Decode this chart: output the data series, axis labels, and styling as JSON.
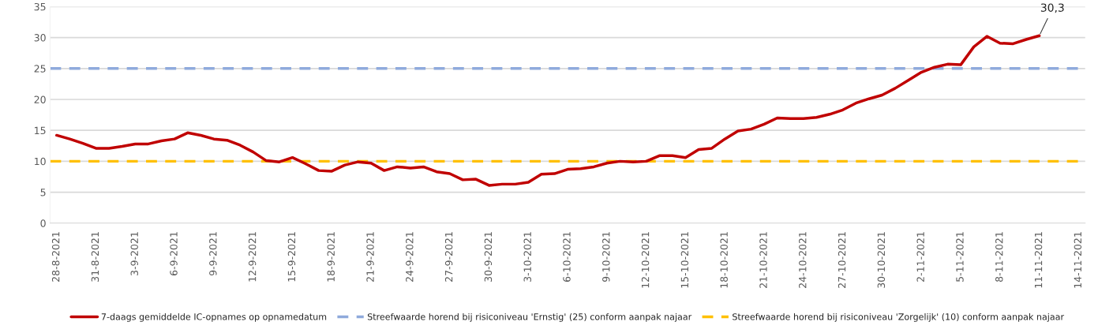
{
  "chart_data": {
    "type": "line",
    "x": [
      "2021-08-28",
      "2021-08-29",
      "2021-08-30",
      "2021-08-31",
      "2021-09-01",
      "2021-09-02",
      "2021-09-03",
      "2021-09-04",
      "2021-09-05",
      "2021-09-06",
      "2021-09-07",
      "2021-09-08",
      "2021-09-09",
      "2021-09-10",
      "2021-09-11",
      "2021-09-12",
      "2021-09-13",
      "2021-09-14",
      "2021-09-15",
      "2021-09-16",
      "2021-09-17",
      "2021-09-18",
      "2021-09-19",
      "2021-09-20",
      "2021-09-21",
      "2021-09-22",
      "2021-09-23",
      "2021-09-24",
      "2021-09-25",
      "2021-09-26",
      "2021-09-27",
      "2021-09-28",
      "2021-09-29",
      "2021-09-30",
      "2021-10-01",
      "2021-10-02",
      "2021-10-03",
      "2021-10-04",
      "2021-10-05",
      "2021-10-06",
      "2021-10-07",
      "2021-10-08",
      "2021-10-09",
      "2021-10-10",
      "2021-10-11",
      "2021-10-12",
      "2021-10-13",
      "2021-10-14",
      "2021-10-15",
      "2021-10-16",
      "2021-10-17",
      "2021-10-18",
      "2021-10-19",
      "2021-10-20",
      "2021-10-21",
      "2021-10-22",
      "2021-10-23",
      "2021-10-24",
      "2021-10-25",
      "2021-10-26",
      "2021-10-27",
      "2021-10-28",
      "2021-10-29",
      "2021-10-30",
      "2021-10-31",
      "2021-11-01",
      "2021-11-02",
      "2021-11-03",
      "2021-11-04",
      "2021-11-05",
      "2021-11-06",
      "2021-11-07",
      "2021-11-08",
      "2021-11-09",
      "2021-11-10",
      "2021-11-11"
    ],
    "series": [
      {
        "name": "7-daags gemiddelde IC-opnames op opnamedatum",
        "color": "#c00000",
        "values": [
          14.2,
          13.6,
          12.9,
          12.1,
          12.1,
          12.4,
          12.8,
          12.8,
          13.3,
          13.6,
          14.6,
          14.2,
          13.6,
          13.4,
          12.6,
          11.5,
          10.1,
          9.9,
          10.6,
          9.6,
          8.5,
          8.4,
          9.4,
          9.9,
          9.7,
          8.5,
          9.1,
          8.9,
          9.1,
          8.3,
          8.0,
          7.0,
          7.1,
          6.1,
          6.3,
          6.3,
          6.6,
          7.9,
          8.0,
          8.7,
          8.8,
          9.1,
          9.7,
          10.0,
          9.9,
          10.0,
          10.9,
          10.9,
          10.6,
          11.9,
          12.1,
          13.6,
          14.9,
          15.2,
          16.0,
          17.0,
          16.9,
          16.9,
          17.1,
          17.6,
          18.3,
          19.4,
          20.1,
          20.7,
          21.8,
          23.1,
          24.4,
          25.2,
          25.7,
          25.6,
          28.5,
          30.2,
          29.1,
          29.0,
          29.7,
          30.3
        ]
      }
    ],
    "xlim": [
      "2021-08-27T12:00",
      "2021-11-14T12:00"
    ],
    "xticks": [
      {
        "value": "2021-08-28",
        "label": "28-8-2021"
      },
      {
        "value": "2021-08-31",
        "label": "31-8-2021"
      },
      {
        "value": "2021-09-03",
        "label": "3-9-2021"
      },
      {
        "value": "2021-09-06",
        "label": "6-9-2021"
      },
      {
        "value": "2021-09-09",
        "label": "9-9-2021"
      },
      {
        "value": "2021-09-12",
        "label": "12-9-2021"
      },
      {
        "value": "2021-09-15",
        "label": "15-9-2021"
      },
      {
        "value": "2021-09-18",
        "label": "18-9-2021"
      },
      {
        "value": "2021-09-21",
        "label": "21-9-2021"
      },
      {
        "value": "2021-09-24",
        "label": "24-9-2021"
      },
      {
        "value": "2021-09-27",
        "label": "27-9-2021"
      },
      {
        "value": "2021-09-30",
        "label": "30-9-2021"
      },
      {
        "value": "2021-10-03",
        "label": "3-10-2021"
      },
      {
        "value": "2021-10-06",
        "label": "6-10-2021"
      },
      {
        "value": "2021-10-09",
        "label": "9-10-2021"
      },
      {
        "value": "2021-10-12",
        "label": "12-10-2021"
      },
      {
        "value": "2021-10-15",
        "label": "15-10-2021"
      },
      {
        "value": "2021-10-18",
        "label": "18-10-2021"
      },
      {
        "value": "2021-10-21",
        "label": "21-10-2021"
      },
      {
        "value": "2021-10-24",
        "label": "24-10-2021"
      },
      {
        "value": "2021-10-27",
        "label": "27-10-2021"
      },
      {
        "value": "2021-10-30",
        "label": "30-10-2021"
      },
      {
        "value": "2021-11-02",
        "label": "2-11-2021"
      },
      {
        "value": "2021-11-05",
        "label": "5-11-2021"
      },
      {
        "value": "2021-11-08",
        "label": "8-11-2021"
      },
      {
        "value": "2021-11-11",
        "label": "11-11-2021"
      },
      {
        "value": "2021-11-14",
        "label": "14-11-2021"
      }
    ],
    "ylim": [
      0,
      35
    ],
    "yticks": [
      0,
      5,
      10,
      15,
      20,
      25,
      30,
      35
    ],
    "ref_lines": [
      {
        "axis": "y",
        "value": 25,
        "label": "Streefwaarde horend bij risiconiveau 'Ernstig' (25) conform aanpak najaar",
        "color": "#8faadc",
        "line_style": "dashed"
      },
      {
        "axis": "y",
        "value": 10,
        "label": "Streefwaarde horend bij risiconiveau 'Zorgelijk' (10) conform aanpak najaar",
        "color": "#ffc000",
        "line_style": "dashed"
      }
    ],
    "annotations": [
      {
        "text": "30,3",
        "x": "2021-11-11",
        "y": 30.3
      }
    ],
    "grid": "y",
    "legend": "bottom",
    "line_style": "solid",
    "marker": "none"
  }
}
